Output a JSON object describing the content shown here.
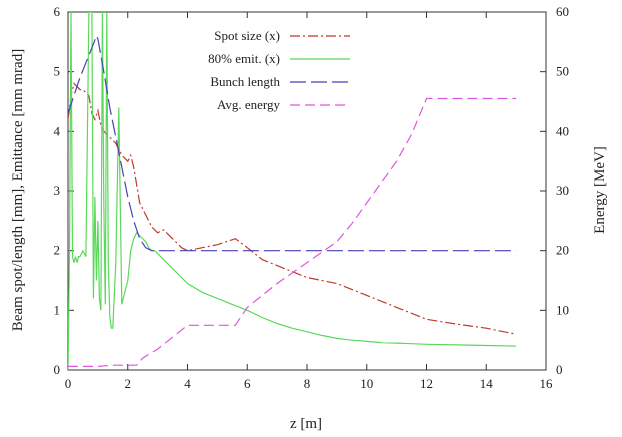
{
  "chart_data": {
    "type": "line",
    "xlabel": "z [m]",
    "ylabel": "Beam spot/length [mm], Emittance [mm mrad]",
    "y2label": "Energy [MeV]",
    "xlim": [
      0,
      16
    ],
    "ylim": [
      0,
      6
    ],
    "y2lim": [
      0,
      60
    ],
    "x_ticks": [
      0,
      2,
      4,
      6,
      8,
      10,
      12,
      14,
      16
    ],
    "y_ticks": [
      0,
      1,
      2,
      3,
      4,
      5,
      6
    ],
    "y2_ticks": [
      0,
      10,
      20,
      30,
      40,
      50,
      60
    ],
    "legend_position": "top-right",
    "series": [
      {
        "name": "Spot size (x)",
        "axis": "left",
        "color": "#c0392b",
        "dash": "10,3,2,3",
        "x": [
          0,
          0.1,
          0.2,
          0.3,
          0.4,
          0.5,
          0.6,
          0.7,
          0.8,
          0.9,
          1.0,
          1.1,
          1.2,
          1.4,
          1.6,
          1.8,
          2.0,
          2.1,
          2.2,
          2.3,
          2.4,
          2.6,
          2.8,
          3.0,
          3.2,
          3.4,
          3.6,
          3.8,
          4.0,
          4.5,
          5.0,
          5.6,
          6.0,
          6.5,
          7.0,
          7.5,
          8.0,
          8.5,
          9.0,
          9.5,
          10.0,
          10.5,
          11.0,
          11.5,
          12.0,
          13.0,
          14.0,
          15.0
        ],
        "values": [
          4.2,
          4.6,
          4.8,
          4.75,
          4.7,
          4.7,
          4.65,
          4.6,
          4.3,
          4.2,
          4.35,
          4.1,
          4.0,
          3.9,
          3.8,
          3.6,
          3.5,
          3.6,
          3.4,
          3.1,
          2.8,
          2.6,
          2.4,
          2.3,
          2.35,
          2.25,
          2.15,
          2.05,
          2.0,
          2.05,
          2.1,
          2.2,
          2.05,
          1.85,
          1.75,
          1.65,
          1.55,
          1.5,
          1.45,
          1.35,
          1.25,
          1.15,
          1.05,
          0.95,
          0.85,
          0.77,
          0.7,
          0.6
        ]
      },
      {
        "name": "80% emit. (x)",
        "axis": "left",
        "color": "#5bd85b",
        "dash": "",
        "x": [
          0,
          0.05,
          0.1,
          0.15,
          0.2,
          0.25,
          0.3,
          0.35,
          0.4,
          0.5,
          0.6,
          0.7,
          0.8,
          0.85,
          0.9,
          0.95,
          1.0,
          1.05,
          1.1,
          1.15,
          1.2,
          1.25,
          1.3,
          1.35,
          1.4,
          1.45,
          1.5,
          1.6,
          1.7,
          1.8,
          1.9,
          2.0,
          2.1,
          2.2,
          2.3,
          2.4,
          2.5,
          2.6,
          2.7,
          2.8,
          2.9,
          3.0,
          3.2,
          3.4,
          3.6,
          3.8,
          4.0,
          4.5,
          5.0,
          5.5,
          6.0,
          6.5,
          7.0,
          7.5,
          8.0,
          8.5,
          9.0,
          9.5,
          10.0,
          10.5,
          11.0,
          11.5,
          12.0,
          13.0,
          14.0,
          15.0
        ],
        "values": [
          0,
          2.0,
          6.0,
          1.9,
          1.8,
          1.9,
          1.8,
          1.9,
          1.9,
          2.0,
          1.9,
          6.0,
          6.0,
          1.2,
          2.9,
          1.5,
          2.5,
          1.2,
          1.0,
          6.0,
          2.8,
          1.1,
          6.0,
          1.8,
          0.9,
          0.7,
          0.7,
          1.8,
          4.4,
          1.1,
          1.3,
          1.5,
          2.0,
          2.2,
          2.3,
          2.25,
          2.2,
          2.15,
          2.05,
          2.0,
          2.0,
          1.95,
          1.85,
          1.75,
          1.65,
          1.55,
          1.45,
          1.3,
          1.2,
          1.1,
          1.0,
          0.88,
          0.78,
          0.7,
          0.64,
          0.58,
          0.53,
          0.5,
          0.48,
          0.46,
          0.45,
          0.44,
          0.43,
          0.42,
          0.41,
          0.4
        ]
      },
      {
        "name": "Bunch length",
        "axis": "left",
        "color": "#4a3fb3",
        "dash": "16,5",
        "x": [
          0,
          0.2,
          0.4,
          0.6,
          0.8,
          0.95,
          1.0,
          1.2,
          1.4,
          1.6,
          1.8,
          2.0,
          2.2,
          2.4,
          2.6,
          2.8,
          3.0,
          3.5,
          4.0,
          6.0,
          8.0,
          10.0,
          12.0,
          14.0,
          15.0
        ],
        "values": [
          4.3,
          4.6,
          4.9,
          5.15,
          5.4,
          5.6,
          5.55,
          5.0,
          4.4,
          3.9,
          3.4,
          2.9,
          2.5,
          2.2,
          2.05,
          2.0,
          2.0,
          2.0,
          2.0,
          2.0,
          2.0,
          2.0,
          2.0,
          2.0,
          2.0
        ]
      },
      {
        "name": "Avg. energy",
        "axis": "right",
        "color": "#e055e0",
        "dash": "10,5",
        "x": [
          0,
          1.0,
          1.5,
          2.0,
          2.3,
          2.5,
          3.0,
          3.5,
          4.0,
          4.5,
          5.0,
          5.6,
          6.0,
          7.0,
          8.0,
          9.0,
          9.5,
          10.0,
          10.5,
          11.0,
          11.5,
          12.0,
          13.0,
          14.0,
          15.0
        ],
        "values": [
          0.6,
          0.6,
          0.8,
          0.8,
          0.8,
          2.0,
          3.5,
          5.5,
          7.5,
          7.5,
          7.5,
          7.5,
          10.5,
          14.5,
          18.0,
          21.5,
          24.5,
          28.0,
          31.5,
          35.0,
          39.5,
          45.5,
          45.5,
          45.5,
          45.5
        ]
      }
    ]
  }
}
